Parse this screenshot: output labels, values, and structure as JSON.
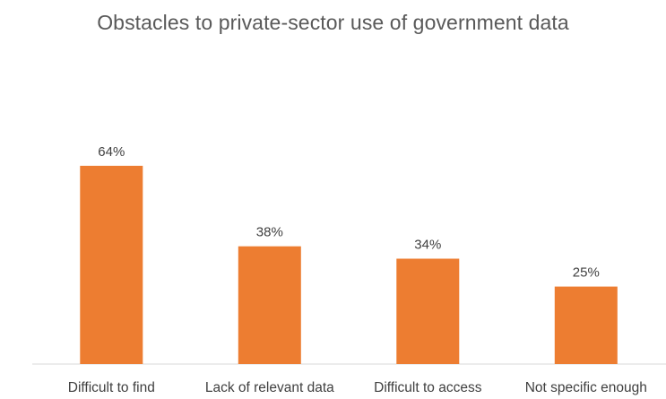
{
  "chart_data": {
    "type": "bar",
    "title": "Obstacles to private-sector use of government data",
    "xlabel": "",
    "ylabel": "",
    "categories": [
      "Difficult to find",
      "Lack of relevant data",
      "Difficult to access",
      "Not specific enough"
    ],
    "values": [
      64,
      38,
      34,
      25
    ],
    "data_labels": [
      "64%",
      "38%",
      "34%",
      "25%"
    ],
    "ylim": [
      0,
      100
    ],
    "grid": false,
    "legend": "none",
    "bar_color": "#ED7D31",
    "axis_color": "#D9D9D9",
    "text_color": "#404040",
    "title_color": "#595959"
  }
}
